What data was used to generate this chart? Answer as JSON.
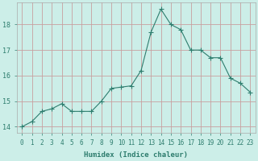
{
  "x": [
    0,
    1,
    2,
    3,
    4,
    5,
    6,
    7,
    8,
    9,
    10,
    11,
    12,
    13,
    14,
    15,
    16,
    17,
    18,
    19,
    20,
    21,
    22,
    23
  ],
  "y": [
    14.0,
    14.2,
    14.6,
    14.7,
    14.9,
    14.6,
    14.6,
    14.6,
    15.0,
    15.5,
    15.55,
    15.6,
    16.2,
    17.7,
    18.6,
    18.0,
    17.8,
    17.0,
    17.0,
    16.7,
    16.7,
    15.9,
    15.7,
    15.35
  ],
  "line_color": "#2e7d6e",
  "marker": "+",
  "marker_size": 4,
  "bg_color": "#cceee8",
  "grid_color_major": "#c8a0a0",
  "grid_color_minor": "#ddc0c0",
  "xlabel": "Humidex (Indice chaleur)",
  "tick_color": "#2e7d6e",
  "ylabel_ticks": [
    14,
    15,
    16,
    17,
    18
  ],
  "xlim": [
    -0.5,
    23.5
  ],
  "ylim": [
    13.75,
    18.85
  ],
  "xlabel_fontsize": 6.5,
  "tick_fontsize": 5.5
}
